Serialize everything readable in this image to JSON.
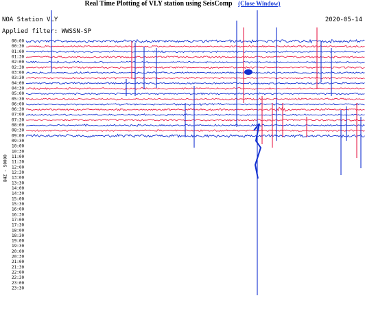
{
  "header": {
    "title": "Real Time Plotting of VLY station using SeisComp",
    "link": "(Close Window)"
  },
  "plot": {
    "station": "NOA Station VLY",
    "date": "2020-05-14",
    "filter": "Applied filter: WWSSN-SP",
    "axis_label": "BHZ - 50000",
    "time_labels": [
      "00:00",
      "00:30",
      "01:00",
      "01:30",
      "02:00",
      "02:30",
      "03:00",
      "03:30",
      "04:00",
      "04:30",
      "05:00",
      "05:30",
      "06:00",
      "06:30",
      "07:00",
      "07:30",
      "08:00",
      "08:30",
      "09:00",
      "09:30",
      "10:00",
      "10:30",
      "11:00",
      "11:30",
      "12:00",
      "12:30",
      "13:00",
      "13:30",
      "14:00",
      "14:30",
      "15:00",
      "15:30",
      "16:00",
      "16:30",
      "17:00",
      "17:30",
      "18:00",
      "18:30",
      "19:00",
      "19:30",
      "20:00",
      "20:30",
      "21:00",
      "21:30",
      "22:00",
      "22:30",
      "23:00",
      "23:30"
    ]
  }
}
